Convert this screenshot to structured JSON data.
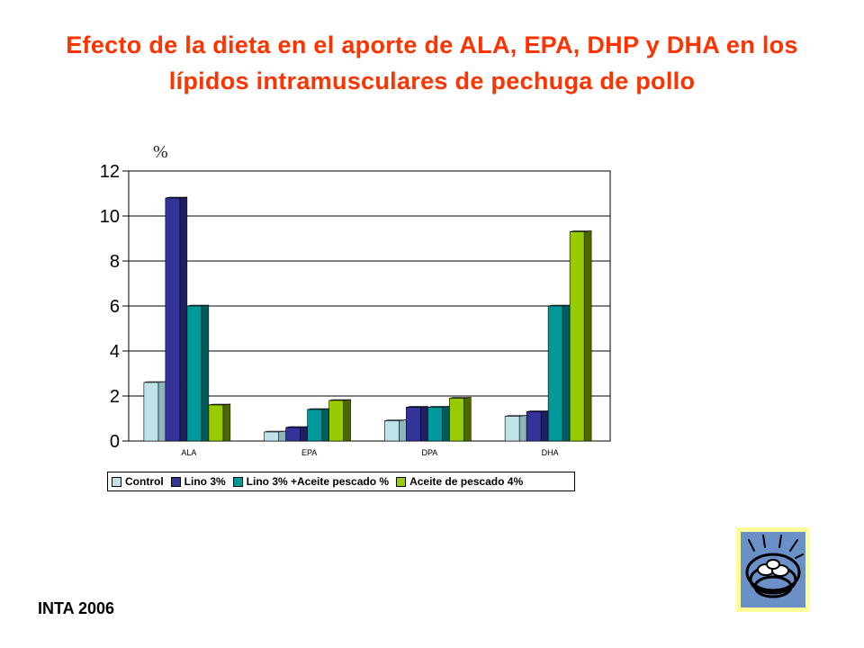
{
  "title": "Efecto de la dieta en el aporte de ALA, EPA, DHP y DHA en los lípidos intramusculares de  pechuga de pollo",
  "unit_label": "%",
  "footer": "INTA  2006",
  "colors": {
    "title": "#ff3300",
    "series": [
      "#bfe3e8",
      "#333399",
      "#009999",
      "#99cc00"
    ],
    "series_side": [
      "#8fb5ba",
      "#1f1f5c",
      "#005c5c",
      "#4d6600"
    ]
  },
  "chart_data": {
    "type": "bar",
    "style": "3d-clustered",
    "categories": [
      "ALA",
      "EPA",
      "DPA",
      "DHA"
    ],
    "series": [
      {
        "name": "Control",
        "values": [
          2.6,
          0.4,
          0.9,
          1.1
        ]
      },
      {
        "name": "Lino 3%",
        "values": [
          10.8,
          0.6,
          1.5,
          1.3
        ]
      },
      {
        "name": "Lino 3% +Aceite pescado %",
        "values": [
          6.0,
          1.4,
          1.5,
          6.0
        ]
      },
      {
        "name": "Aceite de pescado 4%",
        "values": [
          1.6,
          1.8,
          1.9,
          9.3
        ]
      }
    ],
    "yticks": [
      0,
      2,
      4,
      6,
      8,
      10,
      12
    ],
    "ylim": [
      0,
      12
    ],
    "ylabel": "%",
    "grid": true,
    "legend_position": "bottom"
  },
  "logo": {
    "icon": "bird-nest-eggs-icon"
  }
}
